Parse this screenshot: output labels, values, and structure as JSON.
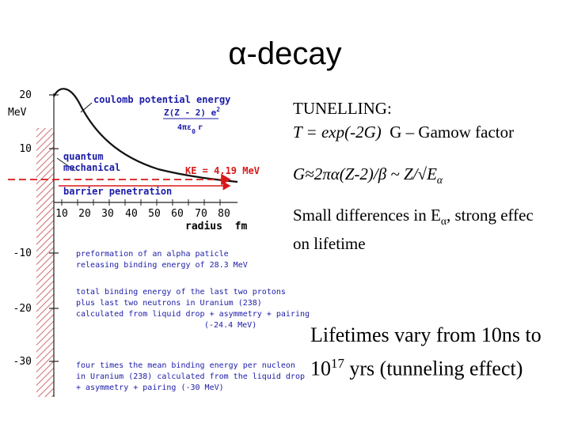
{
  "title": "α-decay",
  "diagram": {
    "y_ticks": [
      "20",
      "10",
      "-10",
      "-20",
      "-30"
    ],
    "y_unit": "MeV",
    "x_ticks": [
      "10",
      "20",
      "30",
      "40",
      "50",
      "60",
      "70",
      "80"
    ],
    "x_label": "radius  fm",
    "coulomb_title": "coulomb potential energy",
    "coulomb_formula_num": "Z(Z - 2) e",
    "coulomb_formula_exp": "2",
    "coulomb_formula_den": "4πε",
    "coulomb_formula_den_sub": "0",
    "coulomb_formula_den_r": "r",
    "quantum_1": "quantum",
    "quantum_2": "mechanical",
    "ke_label": "KE = 4.19 MeV",
    "barrier_label": "barrier penetration",
    "preformation_1": "preformation of an alpha paticle",
    "preformation_2": "releasing binding energy of 28.3 MeV",
    "total_1": "total binding energy of the last two protons",
    "total_2": "plus last two neutrons in Uranium (238)",
    "total_3": "calculated from liquid drop + asymmetry + pairing",
    "total_4": "(-24.4 MeV)",
    "four_1": "four times the mean binding energy per nucleon",
    "four_2": "in Uranium (238) calculated from the liquid drop",
    "four_3": "+ asymmetry + pairing (-30 MeV)"
  },
  "tunnelling": {
    "heading": "TUNELLING:",
    "t_formula": "T = exp(-2G)",
    "g_desc": "G – Gamow factor"
  },
  "gamow": {
    "lhs": "G≈2πα(Z-2)/β ~ Z/√E",
    "sub": "α"
  },
  "small_diff": {
    "line1_a": "Small differences in E",
    "line1_sub": "α",
    "line1_b": ", strong effec",
    "line2": "on lifetime"
  },
  "lifetimes": {
    "line1": "Lifetimes vary from 10ns to",
    "line2_base": "10",
    "line2_exp": "17",
    "line2_rest": " yrs (tunneling effect)"
  },
  "colors": {
    "blue_text": "#1c1ca8",
    "red": "#d81818",
    "hatch": "#c44848",
    "ticks": "#222222"
  }
}
